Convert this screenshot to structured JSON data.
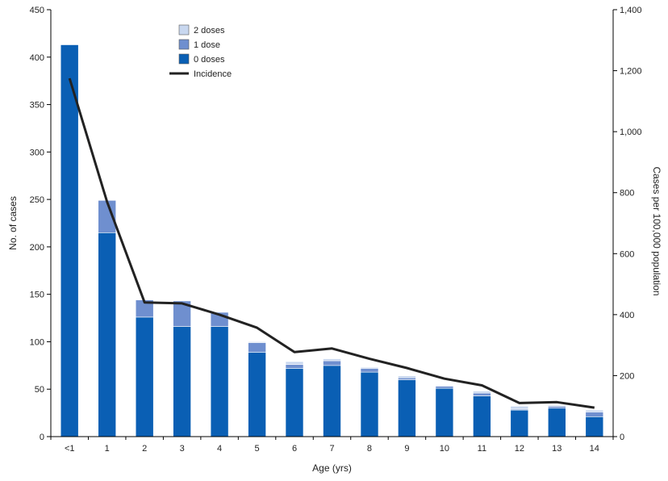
{
  "chart_data": {
    "type": "bar",
    "stacked": true,
    "categories": [
      "<1",
      "1",
      "2",
      "3",
      "4",
      "5",
      "6",
      "7",
      "8",
      "9",
      "10",
      "11",
      "12",
      "13",
      "14"
    ],
    "xlabel": "Age (yrs)",
    "ylabel": "No. of cases",
    "y2label": "Cases per 100,000 population",
    "ylim": [
      0,
      450
    ],
    "y2lim": [
      0,
      1400
    ],
    "yticks": [
      0,
      50,
      100,
      150,
      200,
      250,
      300,
      350,
      400,
      450
    ],
    "y2ticks": [
      0,
      200,
      400,
      600,
      800,
      1000,
      1200,
      1400
    ],
    "y2tick_labels": [
      "0",
      "200",
      "400",
      "600",
      "800",
      "1,000",
      "1,200",
      "1,400"
    ],
    "grid": false,
    "legend_position": "top-center",
    "series": [
      {
        "name": "0 doses",
        "color": "#0a5fb4",
        "values": [
          413,
          215,
          126,
          116,
          116,
          89,
          72,
          75,
          68,
          60,
          51,
          43,
          28,
          30,
          21
        ]
      },
      {
        "name": "1 dose",
        "color": "#6f8fcf",
        "values": [
          0,
          34,
          18,
          27,
          15,
          10,
          4,
          5,
          4,
          2,
          2,
          3,
          1,
          2,
          5
        ]
      },
      {
        "name": "2 doses",
        "color": "#c8d7ef",
        "values": [
          0,
          0,
          0,
          0,
          0,
          1,
          3,
          2,
          1,
          2,
          1,
          2,
          3,
          1,
          2
        ]
      }
    ],
    "line_series": {
      "name": "Incidence",
      "color": "#222222",
      "axis": "y2",
      "values": [
        1175,
        770,
        440,
        437,
        400,
        357,
        277,
        289,
        255,
        225,
        190,
        168,
        110,
        113,
        95
      ]
    }
  }
}
